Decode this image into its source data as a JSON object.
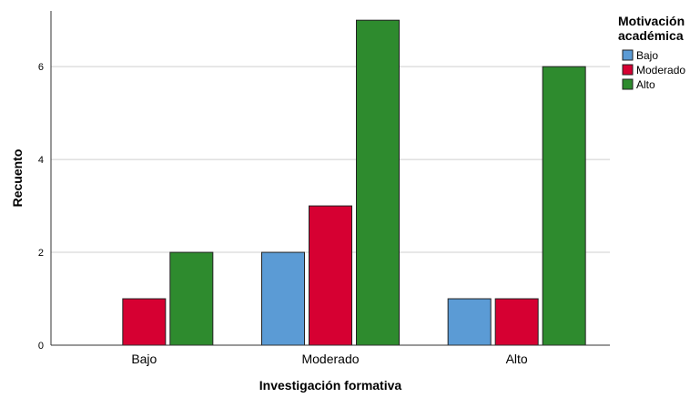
{
  "chart_data": {
    "type": "bar",
    "xlabel": "Investigación formativa",
    "ylabel": "Recuento",
    "categories": [
      "Bajo",
      "Moderado",
      "Alto"
    ],
    "ylim": [
      0,
      7.2
    ],
    "yticks": [
      0,
      2,
      4,
      6
    ],
    "grid": true,
    "legend": {
      "title_lines": [
        "Motivación",
        "académica"
      ],
      "placement": "top-right"
    },
    "series": [
      {
        "name": "Bajo",
        "color": "#5b9bd5",
        "values": [
          0,
          2,
          1
        ]
      },
      {
        "name": "Moderado",
        "color": "#d60032",
        "values": [
          1,
          3,
          1
        ]
      },
      {
        "name": "Alto",
        "color": "#2e8b2e",
        "values": [
          2,
          7,
          6
        ]
      }
    ]
  }
}
